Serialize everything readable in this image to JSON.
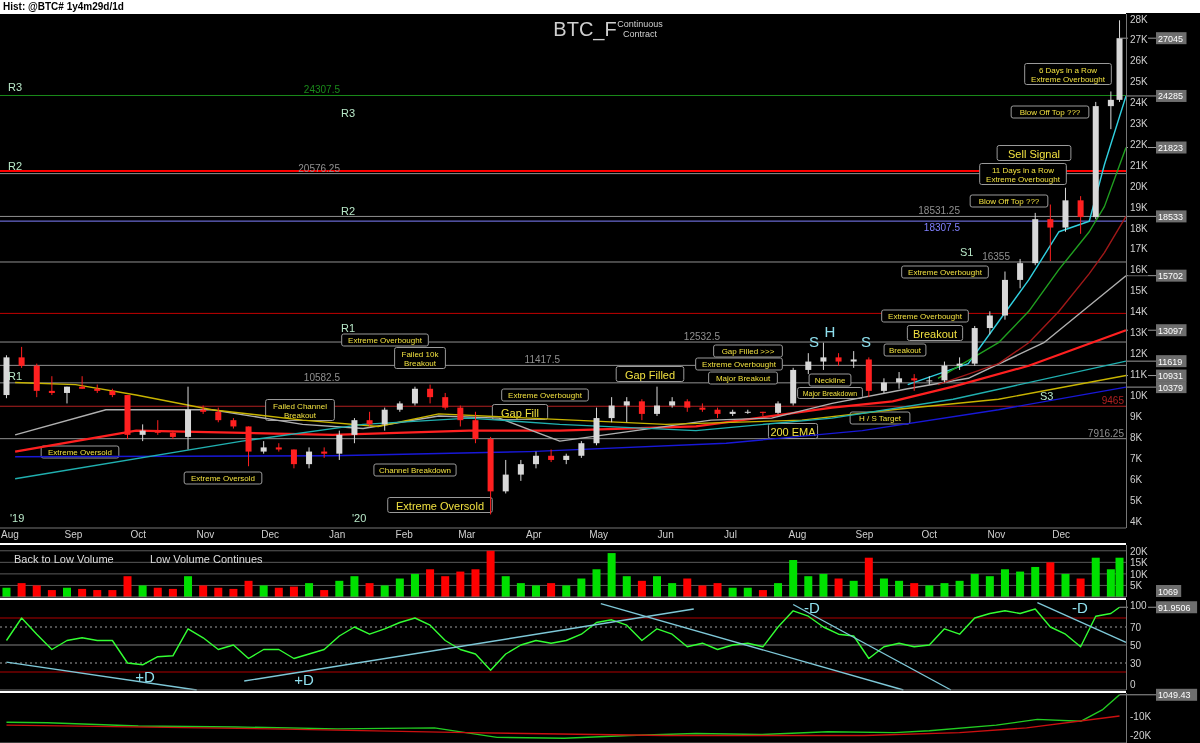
{
  "chart_data": [
    {
      "type": "candlestick",
      "title": "BTC_F",
      "subtitle": "Continuous\nContract",
      "xlim": [
        "2019-07-29",
        "2020-12-31"
      ],
      "xticks": [
        {
          "value": "2019-08-01",
          "label": "Aug"
        },
        {
          "value": "2019-09-01",
          "label": "Sep"
        },
        {
          "value": "2019-10-01",
          "label": "Oct"
        },
        {
          "value": "2019-11-01",
          "label": "Nov"
        },
        {
          "value": "2019-12-01",
          "label": "Dec"
        },
        {
          "value": "2020-01-01",
          "label": "Jan"
        },
        {
          "value": "2020-02-01",
          "label": "Feb"
        },
        {
          "value": "2020-03-01",
          "label": "Mar"
        },
        {
          "value": "2020-04-01",
          "label": "Apr"
        },
        {
          "value": "2020-05-01",
          "label": "May"
        },
        {
          "value": "2020-06-01",
          "label": "Jun"
        },
        {
          "value": "2020-07-01",
          "label": "Jul"
        },
        {
          "value": "2020-08-01",
          "label": "Aug"
        },
        {
          "value": "2020-09-01",
          "label": "Sep"
        },
        {
          "value": "2020-10-01",
          "label": "Oct"
        },
        {
          "value": "2020-11-01",
          "label": "Nov"
        },
        {
          "value": "2020-12-01",
          "label": "Dec"
        }
      ],
      "ylim": [
        3650,
        28200
      ],
      "yticks": [
        {
          "value": 4000,
          "label": "4K"
        },
        {
          "value": 5000,
          "label": "5K"
        },
        {
          "value": 6000,
          "label": "6K"
        },
        {
          "value": 7000,
          "label": "7K"
        },
        {
          "value": 8000,
          "label": "8K"
        },
        {
          "value": 9000,
          "label": "9K"
        },
        {
          "value": 10000,
          "label": "10K"
        },
        {
          "value": 11000,
          "label": "11K"
        },
        {
          "value": 12000,
          "label": "12K"
        },
        {
          "value": 13000,
          "label": "13K"
        },
        {
          "value": 14000,
          "label": "14K"
        },
        {
          "value": 15000,
          "label": "15K"
        },
        {
          "value": 16000,
          "label": "16K"
        },
        {
          "value": 17000,
          "label": "17K"
        },
        {
          "value": 18000,
          "label": "18K"
        },
        {
          "value": 19000,
          "label": "19K"
        },
        {
          "value": 20000,
          "label": "20K"
        },
        {
          "value": 21000,
          "label": "21K"
        },
        {
          "value": 22000,
          "label": "22K"
        },
        {
          "value": 23000,
          "label": "23K"
        },
        {
          "value": 24000,
          "label": "24K"
        },
        {
          "value": 25000,
          "label": "25K"
        },
        {
          "value": 26000,
          "label": "26K"
        },
        {
          "value": 27000,
          "label": "27K"
        },
        {
          "value": 28000,
          "label": "28K"
        }
      ],
      "x": [
        "2019-08-01",
        "2019-08-08",
        "2019-08-15",
        "2019-08-22",
        "2019-08-29",
        "2019-09-05",
        "2019-09-12",
        "2019-09-19",
        "2019-09-26",
        "2019-10-03",
        "2019-10-10",
        "2019-10-17",
        "2019-10-24",
        "2019-10-31",
        "2019-11-07",
        "2019-11-14",
        "2019-11-21",
        "2019-11-28",
        "2019-12-05",
        "2019-12-12",
        "2019-12-19",
        "2019-12-26",
        "2020-01-02",
        "2020-01-09",
        "2020-01-16",
        "2020-01-23",
        "2020-01-30",
        "2020-02-06",
        "2020-02-13",
        "2020-02-20",
        "2020-02-27",
        "2020-03-05",
        "2020-03-12",
        "2020-03-19",
        "2020-03-26",
        "2020-04-02",
        "2020-04-09",
        "2020-04-16",
        "2020-04-23",
        "2020-04-30",
        "2020-05-07",
        "2020-05-14",
        "2020-05-21",
        "2020-05-28",
        "2020-06-04",
        "2020-06-11",
        "2020-06-18",
        "2020-06-25",
        "2020-07-02",
        "2020-07-09",
        "2020-07-16",
        "2020-07-23",
        "2020-07-30",
        "2020-08-06",
        "2020-08-13",
        "2020-08-20",
        "2020-08-27",
        "2020-09-03",
        "2020-09-10",
        "2020-09-17",
        "2020-09-24",
        "2020-10-01",
        "2020-10-08",
        "2020-10-15",
        "2020-10-22",
        "2020-10-29",
        "2020-11-05",
        "2020-11-12",
        "2020-11-19",
        "2020-11-26",
        "2020-12-03",
        "2020-12-10",
        "2020-12-17",
        "2020-12-24",
        "2020-12-28"
      ],
      "ohlc": [
        [
          10000,
          11900,
          9850,
          11800
        ],
        [
          11800,
          12300,
          11300,
          11400
        ],
        [
          11400,
          11500,
          9900,
          10200
        ],
        [
          10200,
          10900,
          10000,
          10100
        ],
        [
          10100,
          10400,
          9600,
          10400
        ],
        [
          10400,
          10900,
          10300,
          10300
        ],
        [
          10300,
          10500,
          10100,
          10200
        ],
        [
          10200,
          10300,
          9900,
          10000
        ],
        [
          10000,
          10000,
          7900,
          8100
        ],
        [
          8100,
          8600,
          7800,
          8300
        ],
        [
          8300,
          8800,
          8100,
          8200
        ],
        [
          8200,
          8300,
          7900,
          8000
        ],
        [
          8000,
          10400,
          7400,
          9300
        ],
        [
          9300,
          9500,
          9100,
          9200
        ],
        [
          9200,
          9400,
          8700,
          8800
        ],
        [
          8800,
          8900,
          8400,
          8500
        ],
        [
          8500,
          8500,
          6600,
          7300
        ],
        [
          7300,
          7800,
          7200,
          7500
        ],
        [
          7500,
          7700,
          7300,
          7400
        ],
        [
          7400,
          7400,
          6500,
          6700
        ],
        [
          6700,
          7500,
          6500,
          7300
        ],
        [
          7300,
          7500,
          7000,
          7200
        ],
        [
          7200,
          8300,
          6900,
          8100
        ],
        [
          8100,
          8900,
          7700,
          8800
        ],
        [
          8800,
          9200,
          8500,
          8600
        ],
        [
          8600,
          9400,
          8300,
          9300
        ],
        [
          9300,
          9700,
          9200,
          9600
        ],
        [
          9600,
          10400,
          9500,
          10300
        ],
        [
          10300,
          10500,
          9600,
          9900
        ],
        [
          9900,
          10100,
          9300,
          9400
        ],
        [
          9400,
          9500,
          8500,
          8800
        ],
        [
          8800,
          9200,
          7700,
          7900
        ],
        [
          7900,
          8000,
          4300,
          5400
        ],
        [
          5400,
          6900,
          5300,
          6200
        ],
        [
          6200,
          6900,
          5900,
          6700
        ],
        [
          6700,
          7300,
          6500,
          7100
        ],
        [
          7100,
          7400,
          6800,
          6900
        ],
        [
          6900,
          7200,
          6700,
          7100
        ],
        [
          7100,
          7800,
          7000,
          7700
        ],
        [
          7700,
          9400,
          7600,
          8900
        ],
        [
          8900,
          9900,
          8700,
          9500
        ],
        [
          9500,
          9900,
          8700,
          9700
        ],
        [
          9700,
          9800,
          8800,
          9100
        ],
        [
          9100,
          10400,
          9000,
          9500
        ],
        [
          9500,
          9900,
          9400,
          9700
        ],
        [
          9700,
          9800,
          9200,
          9400
        ],
        [
          9400,
          9600,
          9200,
          9300
        ],
        [
          9300,
          9400,
          8900,
          9100
        ],
        [
          9100,
          9300,
          9000,
          9200
        ],
        [
          9200,
          9300,
          9100,
          9200
        ],
        [
          9200,
          9200,
          9000,
          9150
        ],
        [
          9150,
          9700,
          9100,
          9600
        ],
        [
          9600,
          11300,
          9500,
          11200
        ],
        [
          11200,
          12000,
          11000,
          11600
        ],
        [
          11600,
          12500,
          11200,
          11800
        ],
        [
          11800,
          12000,
          11400,
          11600
        ],
        [
          11600,
          12100,
          11300,
          11700
        ],
        [
          11700,
          11800,
          9900,
          10200
        ],
        [
          10200,
          10800,
          10100,
          10600
        ],
        [
          10600,
          11100,
          10300,
          10800
        ],
        [
          10800,
          11000,
          10200,
          10700
        ],
        [
          10700,
          10900,
          10500,
          10700
        ],
        [
          10700,
          11600,
          10600,
          11400
        ],
        [
          11400,
          11800,
          11200,
          11500
        ],
        [
          11500,
          13300,
          11400,
          13200
        ],
        [
          13200,
          14000,
          12900,
          13800
        ],
        [
          13800,
          15900,
          13600,
          15500
        ],
        [
          15500,
          16500,
          15100,
          16300
        ],
        [
          16300,
          18700,
          16200,
          18400
        ],
        [
          18400,
          19100,
          16400,
          18000
        ],
        [
          18000,
          19900,
          17800,
          19300
        ],
        [
          19300,
          19500,
          17700,
          18500
        ],
        [
          18500,
          24000,
          18400,
          23800
        ],
        [
          23800,
          24500,
          22700,
          24100
        ],
        [
          24100,
          27900,
          24000,
          27045
        ]
      ],
      "series": [
        {
          "type": "line",
          "color": "#ff2020",
          "x": [
            "2019-08-05",
            "2019-09-30",
            "2019-12-30",
            "2020-03-02",
            "2020-04-13",
            "2020-06-15",
            "2020-08-17",
            "2020-09-14",
            "2020-10-12",
            "2020-11-16",
            "2020-12-31"
          ],
          "values": [
            7300,
            8300,
            8100,
            8300,
            8300,
            8500,
            9400,
            9700,
            10400,
            11400,
            13097
          ]
        },
        {
          "type": "line",
          "color": "#1818d8",
          "x": [
            "2019-08-05",
            "2019-12-30",
            "2020-03-30",
            "2020-06-29",
            "2020-08-31",
            "2020-11-02",
            "2020-12-31"
          ],
          "values": [
            7050,
            7100,
            7300,
            7700,
            8300,
            9300,
            10379
          ]
        },
        {
          "type": "line",
          "color": "#b0b0b0",
          "x": [
            "2019-08-05",
            "2019-09-16",
            "2019-11-04",
            "2019-12-16",
            "2020-01-13",
            "2020-02-17",
            "2020-03-16",
            "2020-04-13",
            "2020-05-18",
            "2020-06-22",
            "2020-07-20",
            "2020-08-17",
            "2020-09-21",
            "2020-10-19",
            "2020-11-23",
            "2020-12-31"
          ],
          "values": [
            8100,
            9300,
            9300,
            8600,
            8400,
            9000,
            8900,
            7800,
            8300,
            8800,
            8900,
            9600,
            10300,
            10800,
            12500,
            15702
          ]
        },
        {
          "type": "line",
          "color": "#c8b400",
          "x": [
            "2019-08-05",
            "2019-09-02",
            "2019-09-30",
            "2019-11-04",
            "2019-12-16",
            "2020-01-20",
            "2020-02-17",
            "2020-03-30",
            "2020-06-01",
            "2020-08-03",
            "2020-09-14",
            "2020-11-02",
            "2020-12-31"
          ],
          "values": [
            10600,
            10500,
            10000,
            9300,
            8800,
            8500,
            9100,
            8900,
            8600,
            8800,
            9300,
            9800,
            10931
          ]
        },
        {
          "type": "line",
          "color": "#20b0b0",
          "x": [
            "2019-08-05",
            "2019-11-18",
            "2020-01-13",
            "2020-03-02",
            "2020-04-13",
            "2020-06-15",
            "2020-08-17",
            "2020-10-12",
            "2020-12-31"
          ],
          "values": [
            6000,
            7800,
            8600,
            8900,
            8600,
            8300,
            8900,
            9800,
            11619
          ]
        },
        {
          "type": "line",
          "color": "#30d0e0",
          "x": [
            "2020-09-21",
            "2020-10-19",
            "2020-11-02",
            "2020-11-16",
            "2020-11-30",
            "2020-12-14",
            "2020-12-21",
            "2020-12-31"
          ],
          "values": [
            10500,
            11500,
            13500,
            15500,
            17800,
            18300,
            21000,
            24285
          ]
        },
        {
          "type": "line",
          "color": "#20a020",
          "x": [
            "2020-10-05",
            "2020-11-02",
            "2020-11-16",
            "2020-11-30",
            "2020-12-14",
            "2020-12-21",
            "2020-12-31"
          ],
          "values": [
            10800,
            12500,
            14000,
            16000,
            17800,
            19000,
            21823
          ]
        },
        {
          "type": "line",
          "color": "#a01818",
          "x": [
            "2020-10-05",
            "2020-11-02",
            "2020-11-16",
            "2020-11-30",
            "2020-12-14",
            "2020-12-21",
            "2020-12-31"
          ],
          "values": [
            10500,
            11500,
            12500,
            14000,
            15800,
            16800,
            18533
          ]
        }
      ],
      "ref_lines": [
        {
          "axis": "y",
          "value": 24307.5,
          "label": "24307.5",
          "color": "#1a8a1a"
        },
        {
          "axis": "y",
          "value": 20576.25,
          "label": "20576.25",
          "color": "#909090"
        },
        {
          "axis": "y",
          "value": 20700,
          "color": "#ff0000"
        },
        {
          "axis": "y",
          "value": 18531.25,
          "label": "18531.25",
          "color": "#909090"
        },
        {
          "axis": "y",
          "value": 18307.5,
          "label": "18307.5",
          "color": "#8080ff"
        },
        {
          "axis": "y",
          "value": 16355,
          "label": "16355",
          "color": "#909090"
        },
        {
          "axis": "y",
          "value": 13900,
          "color": "#c00000"
        },
        {
          "axis": "y",
          "value": 12532.5,
          "label": "12532.5",
          "color": "#909090"
        },
        {
          "axis": "y",
          "value": 11417.5,
          "label": "11417.5",
          "color": "#909090"
        },
        {
          "axis": "y",
          "value": 10582.5,
          "label": "10582.5",
          "color": "#909090"
        },
        {
          "axis": "y",
          "value": 9465,
          "label": "9465",
          "color": "#b02020"
        },
        {
          "axis": "y",
          "value": 7916.25,
          "label": "7916.25",
          "color": "#909090"
        }
      ],
      "annotations": [
        "Hist: @BTC# 1y4m29d/1d",
        "R3",
        "R2",
        "R1",
        "R3",
        "R2",
        "R1",
        "S1",
        "S3",
        "'19",
        "'20",
        "Extreme Oversold",
        "Extreme Oversold",
        "Extreme Oversold",
        "Extreme Overbought",
        "Failed Channel\nBreakout",
        "Failed 10k\nBreakout",
        "Channel Breakdown",
        "Extreme Overbought",
        "Gap Fill",
        "Gap Filled",
        "Gap Filled >>>",
        "Extreme Overbought",
        "Major Breakout",
        "Neckline",
        "Major Breakdown",
        "H / S Target",
        "200 EMA",
        "S",
        "H",
        "S",
        "Breakout",
        "Extreme Overbought",
        "Breakout",
        "Extreme Overbought",
        "Blow Off Top ???",
        "11 Days in a Row\nExtreme Overbought",
        "Sell Signal",
        "Blow Off Top ???",
        "6 Days in a Row\nExtreme Overbought",
        {
          "text": "27045",
          "x": "2020-12-28",
          "y": 27045
        },
        {
          "text": "24285",
          "x": "2020-12-31",
          "y": 24285
        },
        {
          "text": "21823",
          "x": "2020-12-31",
          "y": 21823
        },
        {
          "text": "18533",
          "x": "2020-12-31",
          "y": 18533
        },
        {
          "text": "15702",
          "x": "2020-12-31",
          "y": 15702
        },
        {
          "text": "13097",
          "x": "2020-12-31",
          "y": 13097
        },
        {
          "text": "11619",
          "x": "2020-12-31",
          "y": 11619
        },
        {
          "text": "10931",
          "x": "2020-12-31",
          "y": 10931
        },
        {
          "text": "10379",
          "x": "2020-12-31",
          "y": 10379
        }
      ]
    },
    {
      "type": "bar",
      "tick_labels": "y",
      "grid": "y",
      "xlim": [
        "2019-07-29",
        "2020-12-31"
      ],
      "ylim": [
        0,
        22500
      ],
      "yticks": [
        {
          "value": 5000,
          "label": "5K"
        },
        {
          "value": 10000,
          "label": "10K"
        },
        {
          "value": 15000,
          "label": "15K"
        },
        {
          "value": 20000,
          "label": "20K"
        }
      ],
      "x": [
        "2019-08-01",
        "2019-08-08",
        "2019-08-15",
        "2019-08-22",
        "2019-08-29",
        "2019-09-05",
        "2019-09-12",
        "2019-09-19",
        "2019-09-26",
        "2019-10-03",
        "2019-10-10",
        "2019-10-17",
        "2019-10-24",
        "2019-10-31",
        "2019-11-07",
        "2019-11-14",
        "2019-11-21",
        "2019-11-28",
        "2019-12-05",
        "2019-12-12",
        "2019-12-19",
        "2019-12-26",
        "2020-01-02",
        "2020-01-09",
        "2020-01-16",
        "2020-01-23",
        "2020-01-30",
        "2020-02-06",
        "2020-02-13",
        "2020-02-20",
        "2020-02-27",
        "2020-03-05",
        "2020-03-12",
        "2020-03-19",
        "2020-03-26",
        "2020-04-02",
        "2020-04-09",
        "2020-04-16",
        "2020-04-23",
        "2020-04-30",
        "2020-05-07",
        "2020-05-14",
        "2020-05-21",
        "2020-05-28",
        "2020-06-04",
        "2020-06-11",
        "2020-06-18",
        "2020-06-25",
        "2020-07-02",
        "2020-07-09",
        "2020-07-16",
        "2020-07-23",
        "2020-07-30",
        "2020-08-06",
        "2020-08-13",
        "2020-08-20",
        "2020-08-27",
        "2020-09-03",
        "2020-09-10",
        "2020-09-17",
        "2020-09-24",
        "2020-10-01",
        "2020-10-08",
        "2020-10-15",
        "2020-10-22",
        "2020-10-29",
        "2020-11-05",
        "2020-11-12",
        "2020-11-19",
        "2020-11-26",
        "2020-12-03",
        "2020-12-10",
        "2020-12-17",
        "2020-12-24",
        "2020-12-28"
      ],
      "values": [
        4000,
        6000,
        5000,
        3000,
        4000,
        3500,
        3000,
        3000,
        9000,
        5000,
        4000,
        3500,
        9000,
        5000,
        4000,
        3500,
        7000,
        5000,
        4000,
        4500,
        6000,
        3000,
        7000,
        9000,
        6000,
        5000,
        8000,
        10000,
        12000,
        9000,
        11000,
        12000,
        20000,
        9000,
        6000,
        5000,
        6000,
        5000,
        8000,
        12000,
        19000,
        9000,
        7000,
        9000,
        6000,
        8000,
        5000,
        6000,
        4000,
        4000,
        3000,
        6000,
        16000,
        9000,
        10000,
        8000,
        7000,
        17000,
        8000,
        7000,
        6000,
        5000,
        6000,
        7000,
        10000,
        9000,
        12000,
        11000,
        13000,
        15000,
        10000,
        8000,
        17000,
        12000,
        17000
      ],
      "colors": [
        "#00e000",
        "#ff0000",
        "#ff0000",
        "#ff0000",
        "#00e000",
        "#ff0000",
        "#ff0000",
        "#ff0000",
        "#ff0000",
        "#00e000",
        "#ff0000",
        "#ff0000",
        "#00e000",
        "#ff0000",
        "#ff0000",
        "#ff0000",
        "#ff0000",
        "#00e000",
        "#ff0000",
        "#ff0000",
        "#00e000",
        "#ff0000",
        "#00e000",
        "#00e000",
        "#ff0000",
        "#00e000",
        "#00e000",
        "#00e000",
        "#ff0000",
        "#ff0000",
        "#ff0000",
        "#ff0000",
        "#ff0000",
        "#00e000",
        "#00e000",
        "#00e000",
        "#ff0000",
        "#00e000",
        "#00e000",
        "#00e000",
        "#00e000",
        "#00e000",
        "#ff0000",
        "#00e000",
        "#00e000",
        "#ff0000",
        "#ff0000",
        "#ff0000",
        "#00e000",
        "#00e000",
        "#ff0000",
        "#00e000",
        "#00e000",
        "#00e000",
        "#00e000",
        "#ff0000",
        "#00e000",
        "#ff0000",
        "#00e000",
        "#00e000",
        "#ff0000",
        "#00e000",
        "#00e000",
        "#00e000",
        "#00e000",
        "#00e000",
        "#00e000",
        "#00e000",
        "#00e000",
        "#ff0000",
        "#00e000",
        "#ff0000",
        "#00e000",
        "#00e000",
        "#00e000"
      ],
      "annotations": [
        "Back to Low Volume",
        "Low Volume Continues",
        "1069"
      ]
    },
    {
      "type": "line",
      "tick_labels": "y",
      "xlim": [
        "2019-07-29",
        "2020-12-31"
      ],
      "ylim": [
        0,
        100
      ],
      "yticks": [
        0,
        30,
        50,
        70,
        100
      ],
      "x": [
        "2019-08-01",
        "2019-08-08",
        "2019-08-15",
        "2019-08-22",
        "2019-08-29",
        "2019-09-05",
        "2019-09-12",
        "2019-09-19",
        "2019-09-26",
        "2019-10-03",
        "2019-10-10",
        "2019-10-17",
        "2019-10-24",
        "2019-10-31",
        "2019-11-07",
        "2019-11-14",
        "2019-11-21",
        "2019-11-28",
        "2019-12-05",
        "2019-12-12",
        "2019-12-19",
        "2019-12-26",
        "2020-01-02",
        "2020-01-09",
        "2020-01-16",
        "2020-01-23",
        "2020-01-30",
        "2020-02-06",
        "2020-02-13",
        "2020-02-20",
        "2020-02-27",
        "2020-03-05",
        "2020-03-12",
        "2020-03-19",
        "2020-03-26",
        "2020-04-02",
        "2020-04-09",
        "2020-04-16",
        "2020-04-23",
        "2020-04-30",
        "2020-05-07",
        "2020-05-14",
        "2020-05-21",
        "2020-05-28",
        "2020-06-04",
        "2020-06-11",
        "2020-06-18",
        "2020-06-25",
        "2020-07-02",
        "2020-07-09",
        "2020-07-16",
        "2020-07-23",
        "2020-07-30",
        "2020-08-06",
        "2020-08-13",
        "2020-08-20",
        "2020-08-27",
        "2020-09-03",
        "2020-09-10",
        "2020-09-17",
        "2020-09-24",
        "2020-10-01",
        "2020-10-08",
        "2020-10-15",
        "2020-10-22",
        "2020-10-29",
        "2020-11-05",
        "2020-11-12",
        "2020-11-19",
        "2020-11-26",
        "2020-12-03",
        "2020-12-10",
        "2020-12-17",
        "2020-12-24",
        "2020-12-28"
      ],
      "series": [
        {
          "color": "#33ff33",
          "values": [
            55,
            80,
            62,
            45,
            55,
            58,
            55,
            55,
            30,
            28,
            37,
            38,
            68,
            58,
            45,
            50,
            35,
            45,
            45,
            35,
            40,
            45,
            60,
            70,
            62,
            68,
            75,
            80,
            72,
            55,
            45,
            40,
            22,
            40,
            50,
            55,
            52,
            55,
            62,
            75,
            78,
            72,
            55,
            68,
            62,
            48,
            52,
            45,
            50,
            52,
            48,
            70,
            88,
            82,
            70,
            62,
            60,
            35,
            48,
            52,
            48,
            50,
            68,
            62,
            80,
            85,
            88,
            85,
            90,
            70,
            62,
            48,
            82,
            85,
            91.9506
          ]
        },
        {
          "type": "line",
          "color": "#7ec8d8",
          "x": [
            "2019-08-01",
            "2019-10-28"
          ],
          "values": [
            31,
            0
          ]
        },
        {
          "type": "line",
          "color": "#7ec8d8",
          "x": [
            "2019-11-19",
            "2020-06-14"
          ],
          "values": [
            10,
            90
          ]
        },
        {
          "type": "line",
          "color": "#7ec8d8",
          "x": [
            "2020-05-02",
            "2020-09-19"
          ],
          "values": [
            96,
            0
          ]
        },
        {
          "type": "line",
          "color": "#7ec8d8",
          "x": [
            "2020-07-30",
            "2020-10-11"
          ],
          "values": [
            95,
            0
          ]
        },
        {
          "type": "line",
          "color": "#7ec8d8",
          "x": [
            "2020-11-20",
            "2020-12-31"
          ],
          "values": [
            97,
            53
          ]
        }
      ],
      "ref_lines": [
        {
          "axis": "y",
          "value": 80,
          "color": "#b00000"
        },
        {
          "axis": "y",
          "value": 70,
          "color": "#a0a0a0",
          "line_style": "dotted"
        },
        {
          "axis": "y",
          "value": 50,
          "color": "#808080"
        },
        {
          "axis": "y",
          "value": 30,
          "color": "#a0a0a0",
          "line_style": "dotted"
        },
        {
          "axis": "y",
          "value": 20,
          "color": "#b00000"
        }
      ],
      "annotations": [
        "+D",
        "+D",
        "-D",
        "-D",
        {
          "text": "91.9506",
          "x": "2020-12-28",
          "y": 91.9506
        }
      ]
    },
    {
      "type": "line",
      "tick_labels": "y",
      "xlim": [
        "2019-07-29",
        "2020-12-31"
      ],
      "ylim": [
        -24500,
        2000
      ],
      "yticks": [
        {
          "value": -10000,
          "label": "-10K"
        },
        {
          "value": -20000,
          "label": "-20K"
        }
      ],
      "series": [
        {
          "color": "#22cc22",
          "x": [
            "2019-08-01",
            "2019-08-20",
            "2019-10-01",
            "2019-11-15",
            "2020-01-01",
            "2020-02-15",
            "2020-03-15",
            "2020-04-15",
            "2020-05-15",
            "2020-06-15",
            "2020-07-15",
            "2020-08-15",
            "2020-09-15",
            "2020-10-01",
            "2020-11-01",
            "2020-11-20",
            "2020-12-10",
            "2020-12-20",
            "2020-12-28"
          ],
          "values": [
            -13500,
            -13800,
            -15500,
            -16000,
            -17000,
            -16500,
            -21500,
            -22000,
            -20500,
            -19500,
            -20000,
            -18500,
            -19000,
            -18000,
            -15000,
            -12000,
            -13000,
            -7000,
            1049.43
          ]
        },
        {
          "color": "#cc1010",
          "x": [
            "2019-08-01",
            "2019-12-01",
            "2020-03-01",
            "2020-06-01",
            "2020-09-01",
            "2020-10-15",
            "2020-11-15",
            "2020-12-28"
          ],
          "values": [
            -15000,
            -17000,
            -19000,
            -20500,
            -20500,
            -19000,
            -16500,
            -10200
          ]
        }
      ],
      "annotations": [
        {
          "text": "1049.43",
          "x": "2020-12-28",
          "y": 1049.43
        }
      ]
    }
  ]
}
